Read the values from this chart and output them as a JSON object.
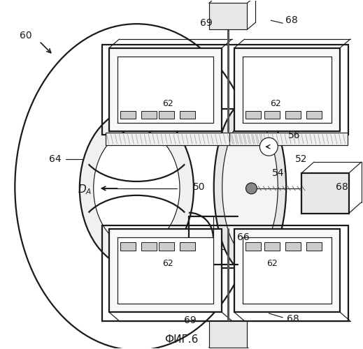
{
  "bg_color": "#ffffff",
  "lc": "#1a1a1a",
  "fig_label": "ФИГ.6",
  "lw_main": 1.6,
  "lw_thin": 0.85,
  "lw_thick": 2.2,
  "fs_main": 10,
  "fs_small": 9
}
